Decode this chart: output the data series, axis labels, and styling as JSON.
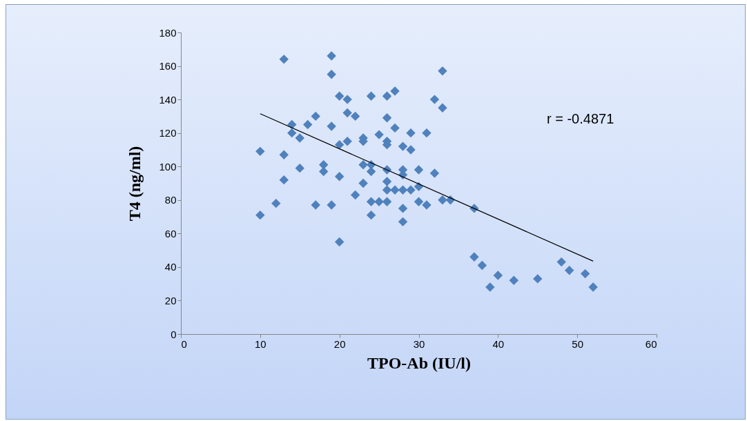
{
  "chart_data": {
    "type": "scatter",
    "xlabel": "TPO-Ab (IU/l)",
    "ylabel": "T4 (ng/ml)",
    "xlim": [
      0,
      60
    ],
    "xticks": [
      0,
      10,
      20,
      30,
      40,
      50,
      60
    ],
    "ylim": [
      0,
      180
    ],
    "yticks": [
      0,
      20,
      40,
      60,
      80,
      100,
      120,
      140,
      160,
      180
    ],
    "grid": false,
    "annotations": [
      "r = -0.4871"
    ],
    "series": [
      {
        "color": "#4f81bd",
        "marker": "diamond",
        "x": [
          10,
          10,
          12,
          13,
          13,
          13,
          14,
          14,
          15,
          15,
          16,
          17,
          17,
          18,
          18,
          19,
          19,
          19,
          19,
          20,
          20,
          20,
          20,
          21,
          21,
          21,
          22,
          22,
          23,
          23,
          23,
          23,
          24,
          24,
          24,
          24,
          24,
          25,
          25,
          26,
          26,
          26,
          26,
          26,
          26,
          26,
          26,
          27,
          27,
          27,
          28,
          28,
          28,
          28,
          28,
          28,
          29,
          29,
          29,
          30,
          30,
          30,
          31,
          31,
          32,
          32,
          33,
          33,
          33,
          34,
          37,
          37,
          38,
          39,
          40,
          42,
          45,
          48,
          49,
          51,
          52
        ],
        "values": [
          109,
          71,
          78,
          164,
          107,
          92,
          125,
          120,
          117,
          99,
          125,
          130,
          77,
          101,
          97,
          166,
          155,
          124,
          77,
          142,
          113,
          94,
          55,
          140,
          132,
          115,
          130,
          83,
          117,
          115,
          101,
          90,
          142,
          101,
          97,
          79,
          71,
          119,
          79,
          142,
          129,
          115,
          113,
          98,
          91,
          86,
          79,
          145,
          123,
          86,
          112,
          98,
          95,
          86,
          75,
          67,
          120,
          110,
          86,
          98,
          88,
          79,
          120,
          77,
          140,
          96,
          157,
          135,
          80,
          80,
          75,
          46,
          41,
          28,
          35,
          32,
          33,
          43,
          38,
          36,
          28
        ]
      },
      {
        "type": "line",
        "color": "#000000",
        "x": [
          10,
          52
        ],
        "values": [
          131.5,
          43.5
        ]
      }
    ]
  }
}
